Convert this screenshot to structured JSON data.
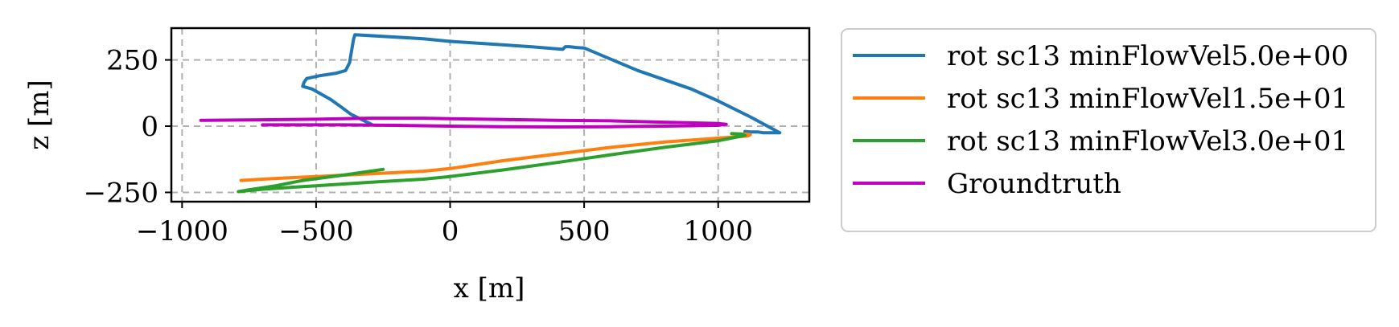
{
  "chart_data": {
    "type": "line",
    "xlabel": "x [m]",
    "ylabel": "z [m]",
    "xlim": [
      -1040,
      1340
    ],
    "ylim": [
      -285,
      370
    ],
    "xticks": [
      -1000,
      -500,
      0,
      500,
      1000
    ],
    "xtick_labels": [
      "−1000",
      "−500",
      "0",
      "500",
      "1000"
    ],
    "yticks": [
      -250,
      0,
      250
    ],
    "ytick_labels": [
      "−250",
      "0",
      "250"
    ],
    "grid": true,
    "legend_position": "outside-right",
    "series": [
      {
        "name": "rot sc13 minFlowVel5.0e+00",
        "color": "#1f77b4",
        "x": [
          -290,
          -300,
          -330,
          -370,
          -410,
          -445,
          -480,
          -515,
          -550,
          -545,
          -535,
          -490,
          -425,
          -390,
          -375,
          -370,
          -365,
          -360,
          -355,
          -100,
          0,
          300,
          420,
          430,
          445,
          470,
          500,
          700,
          900,
          1000,
          1120,
          1230,
          1170,
          1150,
          1120,
          1100
        ],
        "y": [
          5,
          10,
          25,
          45,
          75,
          100,
          120,
          140,
          150,
          165,
          180,
          190,
          200,
          210,
          240,
          270,
          300,
          330,
          345,
          330,
          320,
          300,
          290,
          300,
          300,
          297,
          295,
          210,
          140,
          95,
          35,
          -25,
          -25,
          -22,
          -22,
          -20
        ]
      },
      {
        "name": "rot sc13 minFlowVel1.5e+01",
        "color": "#ff7f0e",
        "x": [
          -780,
          -700,
          -600,
          -500,
          -400,
          -300,
          -200,
          -100,
          0,
          200,
          400,
          600,
          800,
          1000,
          1110,
          1120,
          1110,
          1080
        ],
        "y": [
          -205,
          -200,
          -195,
          -190,
          -185,
          -180,
          -175,
          -170,
          -160,
          -130,
          -105,
          -80,
          -60,
          -45,
          -37,
          -32,
          -30,
          -30
        ]
      },
      {
        "name": "rot sc13 minFlowVel3.0e+01",
        "color": "#2ca02c",
        "x": [
          -250,
          -400,
          -550,
          -650,
          -750,
          -790,
          -700,
          -500,
          -300,
          -100,
          0,
          200,
          400,
          600,
          800,
          1000,
          1100,
          1090,
          1050
        ],
        "y": [
          -163,
          -185,
          -205,
          -225,
          -240,
          -247,
          -238,
          -225,
          -212,
          -200,
          -190,
          -165,
          -137,
          -108,
          -80,
          -55,
          -35,
          -30,
          -28
        ]
      },
      {
        "name": "Groundtruth",
        "color": "#bf00bf",
        "x": [
          -930,
          -700,
          -500,
          -300,
          -100,
          0,
          200,
          400,
          600,
          800,
          1000,
          1030,
          1000,
          800,
          600,
          400,
          200,
          0,
          -200,
          -400,
          -600,
          -700
        ],
        "y": [
          22,
          24,
          26,
          30,
          30,
          28,
          25,
          22,
          20,
          15,
          10,
          7,
          3,
          0,
          -2,
          -3,
          -2,
          0,
          3,
          5,
          5,
          5
        ]
      }
    ]
  }
}
